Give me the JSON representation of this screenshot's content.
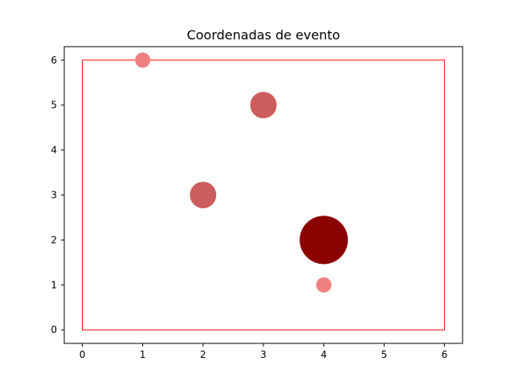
{
  "chart_data": {
    "type": "scatter",
    "title": "Coordenadas de evento",
    "xlabel": "",
    "ylabel": "",
    "xlim": [
      -0.3,
      6.3
    ],
    "ylim": [
      -0.3,
      6.3
    ],
    "xticks": [
      0,
      1,
      2,
      3,
      4,
      5,
      6
    ],
    "yticks": [
      0,
      1,
      2,
      3,
      4,
      5,
      6
    ],
    "grid": false,
    "boundary_rectangle": {
      "x0": 0,
      "y0": 0,
      "x1": 6,
      "y1": 6,
      "color": "#ff0000"
    },
    "points": [
      {
        "x": 1,
        "y": 6,
        "size": 1,
        "color": "#f08080"
      },
      {
        "x": 3,
        "y": 5,
        "size": 3,
        "color": "#cd5c5c"
      },
      {
        "x": 2,
        "y": 3,
        "size": 3,
        "color": "#cd5c5c"
      },
      {
        "x": 4,
        "y": 2,
        "size": 10,
        "color": "#8b0000"
      },
      {
        "x": 4,
        "y": 1,
        "size": 1,
        "color": "#f08080"
      }
    ]
  }
}
